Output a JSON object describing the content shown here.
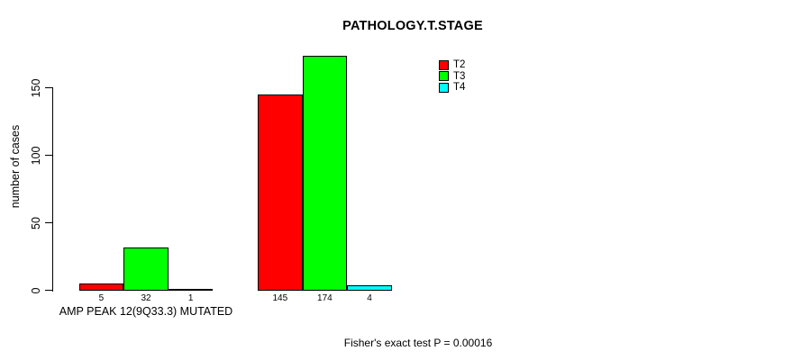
{
  "chart_data": {
    "type": "bar",
    "title": "PATHOLOGY.T.STAGE",
    "ylabel": "number of cases",
    "ylim": [
      0,
      174
    ],
    "yticks": [
      0,
      50,
      100,
      150
    ],
    "grid": false,
    "legend_position": "upper-right-of-plot",
    "series": [
      {
        "name": "T2",
        "color": "#ff0000"
      },
      {
        "name": "T3",
        "color": "#00ff00"
      },
      {
        "name": "T4",
        "color": "#00ffff"
      }
    ],
    "groups": [
      {
        "label": "AMP PEAK 12(9Q33.3) MUTATED",
        "values": [
          5,
          32,
          1
        ]
      },
      {
        "label": "",
        "values": [
          145,
          174,
          4
        ]
      }
    ],
    "bar_value_labels": true,
    "footnote": "Fisher's exact test P = 0.00016"
  }
}
